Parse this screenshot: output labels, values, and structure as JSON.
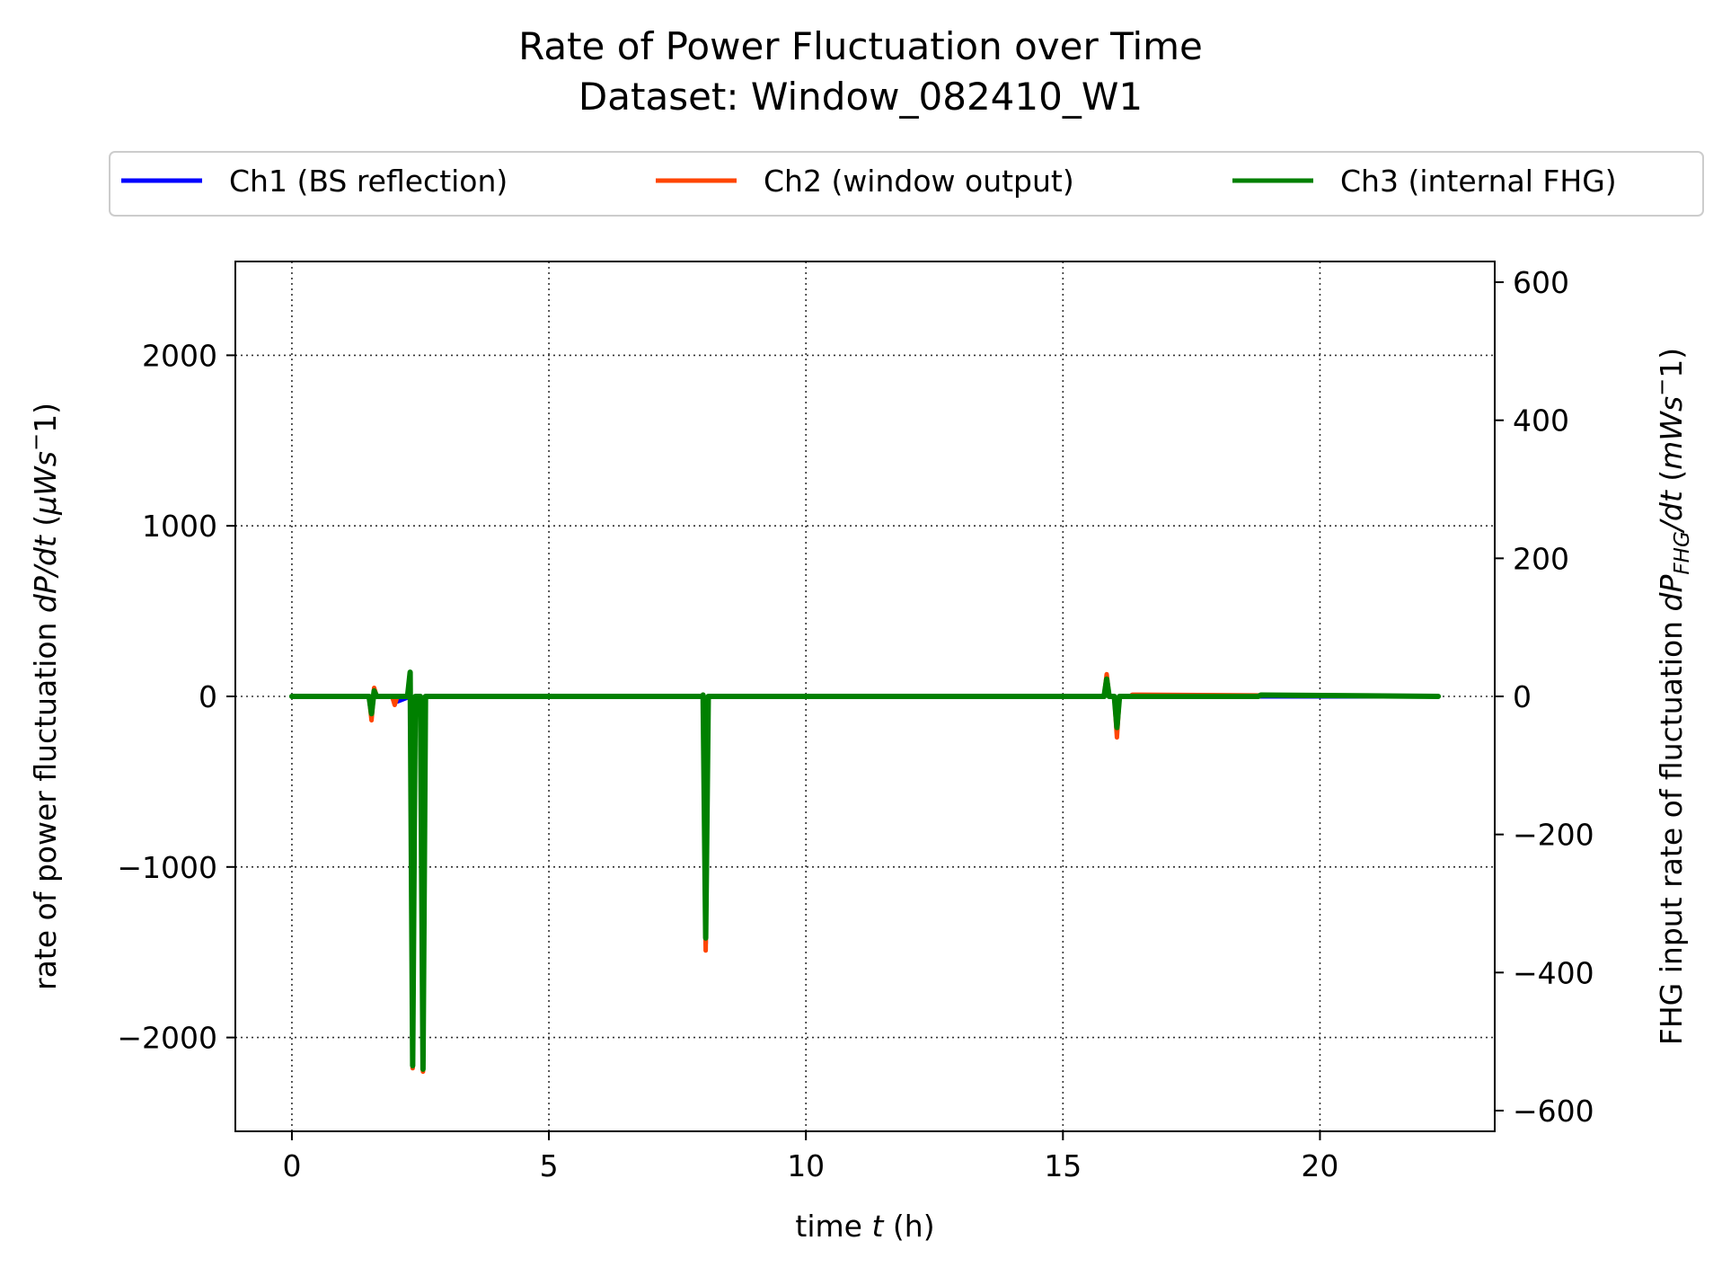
{
  "chart_data": {
    "type": "line",
    "title": "Rate of Power Fluctuation over Time",
    "subtitle": "Dataset: Window_082410_W1",
    "xlabel": {
      "pre": "time ",
      "var": "t",
      "post": " (h)"
    },
    "ylabel": {
      "pre": "rate of power fluctuation ",
      "var": "dP/dt",
      "post": " (",
      "unit_var": "μWs",
      "sup": "−",
      "end": "1)"
    },
    "y2label": {
      "pre": "FHG input rate of fluctuation ",
      "var": "dP",
      "sub": "FHG",
      "var2": "/dt",
      "mid": " (",
      "unit_var": "mWs",
      "sup": "−",
      "end": "1)"
    },
    "xlim": [
      -1.1,
      23.4
    ],
    "ylim": [
      -2550,
      2550
    ],
    "y2lim": [
      -630,
      630
    ],
    "xticks": [
      0,
      5,
      10,
      15,
      20
    ],
    "yticks": [
      2000,
      1000,
      0,
      -1000,
      -2000
    ],
    "y2ticks": [
      600,
      400,
      200,
      0,
      -200,
      -400,
      -600
    ],
    "xtick_labels": [
      "0",
      "5",
      "10",
      "15",
      "20"
    ],
    "ytick_labels": [
      "2000",
      "1000",
      "0",
      "−1000",
      "−2000"
    ],
    "y2tick_labels": [
      "600",
      "400",
      "200",
      "0",
      "−200",
      "−400",
      "−600"
    ],
    "grid": true,
    "legend_placement": "top-center, above plot",
    "series": [
      {
        "name": "Ch1 (BS reflection)",
        "color": "#0000ff",
        "axis": "left",
        "x": [
          0,
          1.5,
          1.55,
          1.6,
          1.65,
          2.0,
          2.05,
          2.3,
          2.35,
          2.4,
          2.5,
          2.55,
          2.6,
          8.0,
          8.05,
          8.1,
          15.8,
          15.85,
          15.9,
          16.0,
          16.05,
          16.1,
          22.3
        ],
        "y": [
          0,
          0,
          -120,
          40,
          0,
          0,
          -30,
          0,
          -2150,
          0,
          0,
          -2180,
          0,
          0,
          -1450,
          0,
          0,
          110,
          0,
          0,
          -210,
          0,
          0
        ]
      },
      {
        "name": "Ch2 (window output)",
        "color": "#ff4500",
        "axis": "left",
        "x": [
          0,
          1.5,
          1.55,
          1.6,
          1.65,
          1.95,
          2.0,
          2.05,
          2.25,
          2.3,
          2.35,
          2.4,
          2.5,
          2.55,
          2.6,
          7.98,
          8.0,
          8.05,
          8.1,
          15.8,
          15.85,
          15.9,
          16.0,
          16.05,
          16.1,
          16.3,
          16.35,
          22.3
        ],
        "y": [
          0,
          0,
          -140,
          50,
          0,
          0,
          -50,
          0,
          0,
          90,
          -2180,
          0,
          0,
          -2200,
          0,
          0,
          10,
          -1490,
          0,
          0,
          130,
          0,
          0,
          -240,
          0,
          0,
          10,
          0
        ]
      },
      {
        "name": "Ch3 (internal FHG)",
        "color": "#008000",
        "axis": "right",
        "x": [
          0,
          1.5,
          1.55,
          1.6,
          1.65,
          2.25,
          2.3,
          2.35,
          2.4,
          2.45,
          2.5,
          2.55,
          2.6,
          7.98,
          8.0,
          8.05,
          8.1,
          15.8,
          15.85,
          15.9,
          16.0,
          16.05,
          16.1,
          18.8,
          18.85,
          22.3
        ],
        "y": [
          0,
          0,
          -25,
          8,
          0,
          0,
          35,
          -535,
          0,
          0,
          0,
          -540,
          0,
          0,
          2,
          -350,
          0,
          0,
          25,
          0,
          0,
          -45,
          0,
          0,
          2,
          0
        ]
      }
    ]
  }
}
